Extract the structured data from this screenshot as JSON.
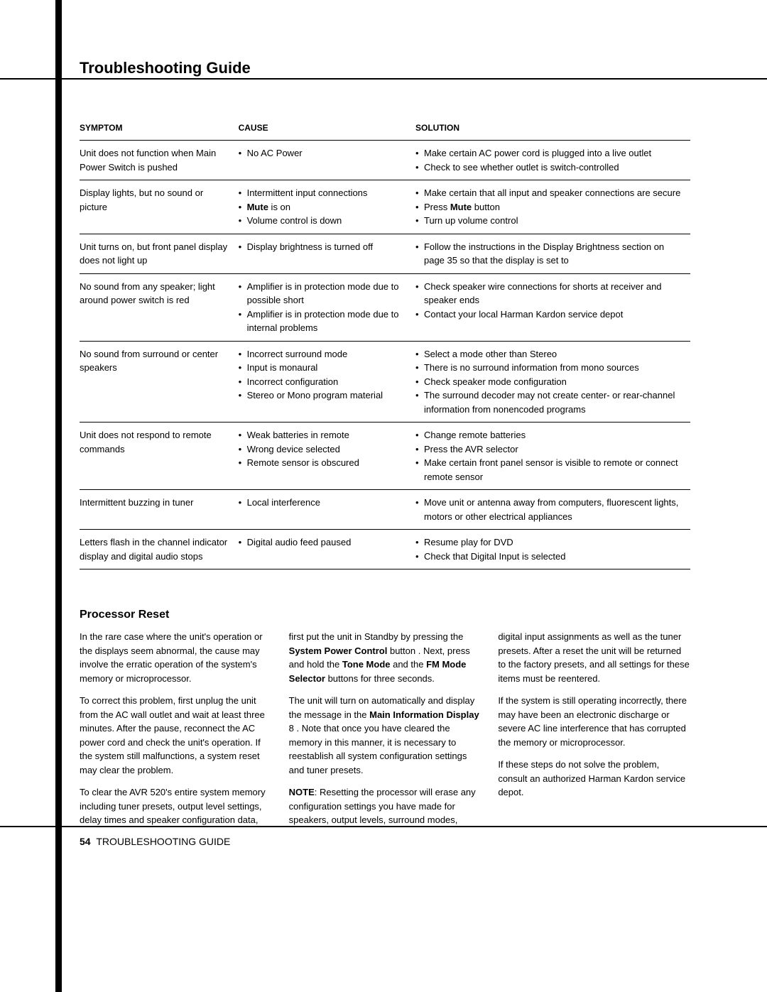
{
  "page_title": "Troubleshooting Guide",
  "table": {
    "headers": {
      "symptom": "SYMPTOM",
      "cause": "CAUSE",
      "solution": "SOLUTION"
    },
    "rows": [
      {
        "symptom": "Unit does not function when Main Power Switch is pushed",
        "causes": [
          [
            {
              "t": "No AC Power"
            }
          ]
        ],
        "solutions": [
          [
            {
              "t": "Make certain AC power cord is plugged into a live outlet"
            }
          ],
          [
            {
              "t": "Check to see whether outlet is switch-controlled"
            }
          ]
        ]
      },
      {
        "symptom": "Display lights, but no sound or picture",
        "causes": [
          [
            {
              "t": "Intermittent input connections"
            }
          ],
          [
            {
              "t": "Mute",
              "b": true
            },
            {
              "t": " is on"
            }
          ],
          [
            {
              "t": "Volume control is down"
            }
          ]
        ],
        "solutions": [
          [
            {
              "t": "Make certain that all input and speaker connections are secure"
            }
          ],
          [
            {
              "t": "Press "
            },
            {
              "t": "Mute",
              "b": true
            },
            {
              "t": " button"
            }
          ],
          [
            {
              "t": "Turn up volume control"
            }
          ]
        ]
      },
      {
        "symptom": "Unit turns on, but front panel display does not light up",
        "causes": [
          [
            {
              "t": "Display brightness is turned off"
            }
          ]
        ],
        "solutions": [
          [
            {
              "t": "Follow the instructions in the Display Brightness section on page 35 so that the display is set to"
            }
          ]
        ]
      },
      {
        "symptom": "No sound from any speaker; light around power switch is red",
        "causes": [
          [
            {
              "t": "Amplifier is in protection mode due to possible short"
            }
          ],
          [
            {
              "t": "Amplifier is in protection mode due to internal problems"
            }
          ]
        ],
        "solutions": [
          [
            {
              "t": "Check speaker wire connections for shorts at receiver and speaker ends"
            }
          ],
          [
            {
              "t": "Contact your local Harman Kardon service depot"
            }
          ]
        ]
      },
      {
        "symptom": "No sound from surround or center speakers",
        "causes": [
          [
            {
              "t": "Incorrect surround mode"
            }
          ],
          [
            {
              "t": "Input is monaural"
            }
          ],
          [
            {
              "t": "Incorrect configuration"
            }
          ],
          [
            {
              "t": "Stereo or Mono program material"
            }
          ]
        ],
        "solutions": [
          [
            {
              "t": "Select a mode other than Stereo"
            }
          ],
          [
            {
              "t": "There is no surround information from mono sources"
            }
          ],
          [
            {
              "t": "Check speaker mode configuration"
            }
          ],
          [
            {
              "t": "The surround decoder may not create center- or rear-channel information from nonencoded programs"
            }
          ]
        ]
      },
      {
        "symptom": "Unit does not respond to remote commands",
        "causes": [
          [
            {
              "t": "Weak batteries in remote"
            }
          ],
          [
            {
              "t": "Wrong device selected"
            }
          ],
          [
            {
              "t": "Remote sensor is obscured"
            }
          ]
        ],
        "solutions": [
          [
            {
              "t": "Change remote batteries"
            }
          ],
          [
            {
              "t": "Press the AVR selector"
            }
          ],
          [
            {
              "t": "Make certain front panel sensor is visible to remote or connect remote sensor"
            }
          ]
        ]
      },
      {
        "symptom": "Intermittent buzzing in tuner",
        "causes": [
          [
            {
              "t": "Local interference"
            }
          ]
        ],
        "solutions": [
          [
            {
              "t": "Move unit or antenna away from computers, fluorescent lights, motors or other electrical appliances"
            }
          ]
        ]
      },
      {
        "symptom": "Letters flash in the channel indicator display and digital audio stops",
        "causes": [
          [
            {
              "t": "Digital audio feed paused"
            }
          ]
        ],
        "solutions": [
          [
            {
              "t": "Resume play for DVD"
            }
          ],
          [
            {
              "t": "Check that Digital Input is selected"
            }
          ]
        ]
      }
    ]
  },
  "reset": {
    "heading": "Processor Reset",
    "p1": "In the rare case where the unit's operation or the displays seem abnormal, the cause may involve the erratic operation of the system's memory or microprocessor.",
    "p2": "To correct this problem, first unplug the unit from the AC wall outlet and wait at least three minutes. After the pause, reconnect the AC power cord and check the unit's operation. If the system still malfunctions, a system reset may clear the problem.",
    "p3a": "To clear the AVR 520's entire system memory including tuner presets, output level settings, ",
    "p3b": "delay times and speaker configuration data, first put the unit in Standby by pressing the ",
    "p3c": "System Power Control",
    "p3d": " button      . Next, press and hold the ",
    "p3e": "Tone Mode",
    "p3f": "       and the ",
    "p3g": "FM Mode Selector",
    "p3h": "       buttons for three seconds.",
    "p4a": "The unit will turn on automatically and display the             message in the ",
    "p4b": "Main Information Display",
    "p4c": " 8   . Note that once you have cleared the memory in this manner, it is necessary to reestablish all system configuration settings and tuner presets.",
    "p5a": "NOTE",
    "p5b": ": Resetting the processor will erase any configuration settings you have made for ",
    "p5c": "speakers, output levels, surround modes, digital input assignments as well as the tuner presets. After a reset the unit will be returned to the factory presets, and all settings for these items must be reentered.",
    "p6": "If the system is still operating incorrectly, there may have been an electronic discharge or severe AC line interference that has corrupted the memory or microprocessor.",
    "p7": "If these steps do not solve the problem, consult an authorized Harman Kardon service depot."
  },
  "footer": {
    "page_number": "54",
    "label": "TROUBLESHOOTING GUIDE"
  }
}
